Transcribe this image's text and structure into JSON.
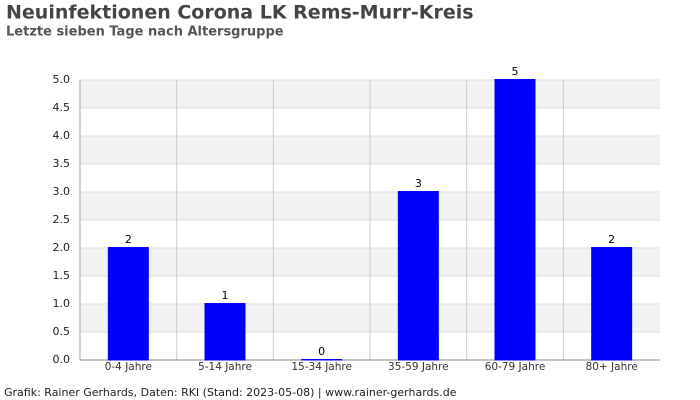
{
  "chart_data": {
    "type": "bar",
    "title": "Neuinfektionen Corona LK Rems-Murr-Kreis",
    "subtitle": "Letzte sieben Tage nach Altersgruppe",
    "source": "Grafik: Rainer Gerhards, Daten: RKI (Stand: 2023-05-08) | www.rainer-gerhards.de",
    "categories": [
      "0-4 Jahre",
      "5-14 Jahre",
      "15-34 Jahre",
      "35-59 Jahre",
      "60-79 Jahre",
      "80+ Jahre"
    ],
    "values": [
      2,
      1,
      0,
      3,
      5,
      2
    ],
    "color": "#0000ff",
    "ylim": [
      0,
      5
    ],
    "yticks": [
      {
        "value": 0,
        "label": "0.0"
      },
      0.5,
      {
        "value": 1,
        "label": "1.0"
      },
      1.5,
      {
        "value": 2,
        "label": "2.0"
      },
      2.5,
      {
        "value": 3,
        "label": "3.0"
      },
      3.5,
      {
        "value": 4,
        "label": "4.0"
      },
      4.5,
      {
        "value": 5,
        "label": "5.0"
      }
    ],
    "grid": true
  }
}
